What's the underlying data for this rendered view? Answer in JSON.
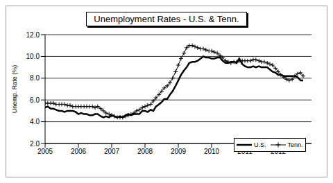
{
  "chart_data": {
    "type": "line",
    "title": "Unemployment Rates - U.S. & Tenn.",
    "y_label": "Unemp. Rate (%)",
    "x": [
      2005.0,
      2005.08,
      2005.17,
      2005.25,
      2005.33,
      2005.42,
      2005.5,
      2005.58,
      2005.67,
      2005.75,
      2005.83,
      2005.92,
      2006.0,
      2006.08,
      2006.17,
      2006.25,
      2006.33,
      2006.42,
      2006.5,
      2006.58,
      2006.67,
      2006.75,
      2006.83,
      2006.92,
      2007.0,
      2007.08,
      2007.17,
      2007.25,
      2007.33,
      2007.42,
      2007.5,
      2007.58,
      2007.67,
      2007.75,
      2007.83,
      2007.92,
      2008.0,
      2008.08,
      2008.17,
      2008.25,
      2008.33,
      2008.42,
      2008.5,
      2008.58,
      2008.67,
      2008.75,
      2008.83,
      2008.92,
      2009.0,
      2009.08,
      2009.17,
      2009.25,
      2009.33,
      2009.42,
      2009.5,
      2009.58,
      2009.67,
      2009.75,
      2009.83,
      2009.92,
      2010.0,
      2010.08,
      2010.17,
      2010.25,
      2010.33,
      2010.42,
      2010.5,
      2010.58,
      2010.67,
      2010.75,
      2010.83,
      2010.92,
      2011.0,
      2011.08,
      2011.17,
      2011.25,
      2011.33,
      2011.42,
      2011.5,
      2011.58,
      2011.67,
      2011.75,
      2011.83,
      2011.92,
      2012.0,
      2012.08,
      2012.17,
      2012.25,
      2012.33,
      2012.42,
      2012.5,
      2012.58,
      2012.67,
      2012.75
    ],
    "series": [
      {
        "name": "U.S.",
        "color": "#000000",
        "marker": "none",
        "values": [
          5.3,
          5.4,
          5.2,
          5.2,
          5.1,
          5.0,
          5.0,
          4.9,
          5.0,
          5.0,
          5.0,
          4.9,
          4.7,
          4.8,
          4.7,
          4.7,
          4.6,
          4.6,
          4.7,
          4.7,
          4.5,
          4.4,
          4.5,
          4.4,
          4.6,
          4.5,
          4.4,
          4.5,
          4.4,
          4.6,
          4.7,
          4.6,
          4.7,
          4.7,
          4.7,
          5.0,
          5.0,
          4.9,
          5.1,
          5.0,
          5.4,
          5.6,
          5.8,
          6.1,
          6.1,
          6.5,
          6.8,
          7.3,
          7.8,
          8.3,
          8.7,
          9.0,
          9.4,
          9.5,
          9.5,
          9.6,
          9.8,
          10.0,
          9.9,
          9.9,
          9.8,
          9.8,
          9.9,
          9.9,
          9.6,
          9.4,
          9.4,
          9.5,
          9.5,
          9.4,
          9.8,
          9.3,
          9.1,
          9.0,
          9.0,
          9.1,
          9.0,
          9.1,
          9.0,
          9.0,
          9.0,
          8.8,
          8.6,
          8.5,
          8.3,
          8.3,
          8.2,
          8.2,
          8.2,
          8.2,
          8.2,
          8.1,
          7.8,
          7.8
        ]
      },
      {
        "name": "Tenn.",
        "color": "#000000",
        "marker": "plus",
        "values": [
          5.7,
          5.7,
          5.7,
          5.7,
          5.6,
          5.6,
          5.6,
          5.6,
          5.5,
          5.5,
          5.4,
          5.4,
          5.4,
          5.4,
          5.4,
          5.4,
          5.4,
          5.4,
          5.3,
          5.4,
          5.2,
          5.0,
          4.8,
          4.7,
          4.6,
          4.5,
          4.4,
          4.4,
          4.4,
          4.5,
          4.6,
          4.7,
          4.8,
          5.0,
          5.1,
          5.3,
          5.4,
          5.5,
          5.6,
          5.9,
          6.2,
          6.5,
          6.8,
          7.1,
          7.3,
          7.6,
          8.0,
          8.6,
          9.2,
          9.8,
          10.3,
          10.8,
          11.0,
          11.0,
          10.9,
          10.8,
          10.7,
          10.7,
          10.6,
          10.5,
          10.5,
          10.4,
          10.3,
          10.1,
          9.9,
          9.6,
          9.5,
          9.4,
          9.5,
          9.5,
          9.6,
          9.6,
          9.6,
          9.6,
          9.6,
          9.7,
          9.7,
          9.6,
          9.5,
          9.5,
          9.4,
          9.3,
          9.2,
          8.9,
          8.6,
          8.3,
          8.1,
          7.9,
          7.8,
          7.9,
          8.2,
          8.4,
          8.5,
          8.2
        ]
      }
    ],
    "xlim": [
      2005,
      2013
    ],
    "xticks": [
      2005,
      2006,
      2007,
      2008,
      2009,
      2010,
      2011,
      2012
    ],
    "ylim": [
      2,
      12
    ],
    "yticks": [
      {
        "value": 2,
        "label": "2.0"
      },
      {
        "value": 4,
        "label": "4.0"
      },
      {
        "value": 6,
        "label": "6.0"
      },
      {
        "value": 8,
        "label": "8.0"
      },
      {
        "value": 10,
        "label": "10.0"
      },
      {
        "value": 12,
        "label": "12.0"
      }
    ],
    "grid": true,
    "legend": "lower right"
  }
}
